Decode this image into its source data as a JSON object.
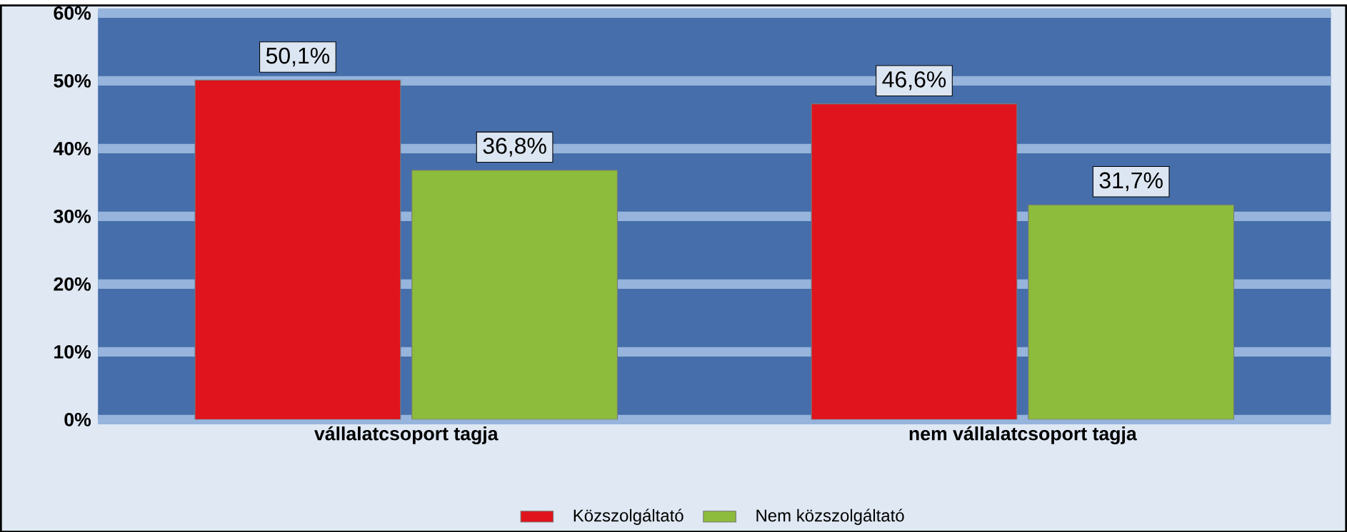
{
  "chart_data": {
    "type": "bar",
    "categories": [
      "vállalatcsoport tagja",
      "nem vállalatcsoport tagja"
    ],
    "series": [
      {
        "name": "Közszolgáltató",
        "color": "#e0141c",
        "values": [
          50.1,
          46.6
        ],
        "value_labels": [
          "50,1%",
          "46,6%"
        ]
      },
      {
        "name": "Nem közszolgáltató",
        "color": "#8dbb3c",
        "values": [
          36.8,
          31.7
        ],
        "value_labels": [
          "36,8%",
          "31,7%"
        ]
      }
    ],
    "ylim": [
      0,
      60
    ],
    "yticks": [
      {
        "value": 0,
        "label": "0%"
      },
      {
        "value": 10,
        "label": "10%"
      },
      {
        "value": 20,
        "label": "20%"
      },
      {
        "value": 30,
        "label": "30%"
      },
      {
        "value": 40,
        "label": "40%"
      },
      {
        "value": 50,
        "label": "50%"
      },
      {
        "value": 60,
        "label": "60%"
      }
    ],
    "grid": "y",
    "legend": "bottom"
  }
}
